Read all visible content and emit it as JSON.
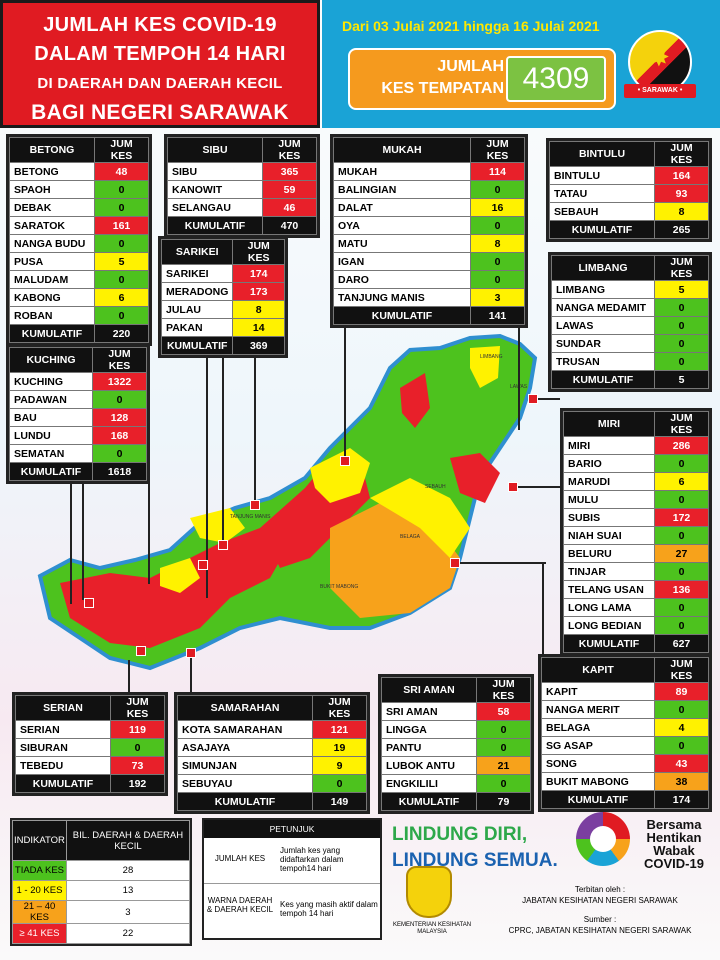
{
  "header": {
    "title_l1": "JUMLAH KES COVID-19",
    "title_l2": "DALAM TEMPOH 14 HARI",
    "title_l3": "DI DAERAH DAN DAERAH KECIL",
    "title_l4": "BAGI NEGERI SARAWAK",
    "period": "Dari 03 Julai 2021 hingga 16 Julai 2021",
    "total_label_1": "JUMLAH",
    "total_label_2": "KES TEMPATAN",
    "total_value": "4309",
    "flag_ribbon": "• SARAWAK •"
  },
  "colors": {
    "red": "#e8202a",
    "yellow": "#fff200",
    "green": "#4dc21e",
    "orange": "#f7a21b"
  },
  "tables": {
    "betong": {
      "name": "BETONG",
      "col": "JUM KES",
      "kum_label": "KUMULATIF",
      "kum": "220",
      "rows": [
        [
          "BETONG",
          "48",
          "red"
        ],
        [
          "SPAOH",
          "0",
          "green"
        ],
        [
          "DEBAK",
          "0",
          "green"
        ],
        [
          "SARATOK",
          "161",
          "red"
        ],
        [
          "NANGA BUDU",
          "0",
          "green"
        ],
        [
          "PUSA",
          "5",
          "yellow"
        ],
        [
          "MALUDAM",
          "0",
          "green"
        ],
        [
          "KABONG",
          "6",
          "yellow"
        ],
        [
          "ROBAN",
          "0",
          "green"
        ]
      ]
    },
    "sibu": {
      "name": "SIBU",
      "col": "JUM KES",
      "kum_label": "KUMULATIF",
      "kum": "470",
      "rows": [
        [
          "SIBU",
          "365",
          "red"
        ],
        [
          "KANOWIT",
          "59",
          "red"
        ],
        [
          "SELANGAU",
          "46",
          "red"
        ]
      ]
    },
    "mukah": {
      "name": "MUKAH",
      "col": "JUM KES",
      "kum_label": "KUMULATIF",
      "kum": "141",
      "rows": [
        [
          "MUKAH",
          "114",
          "red"
        ],
        [
          "BALINGIAN",
          "0",
          "green"
        ],
        [
          "DALAT",
          "16",
          "yellow"
        ],
        [
          "OYA",
          "0",
          "green"
        ],
        [
          "MATU",
          "8",
          "yellow"
        ],
        [
          "IGAN",
          "0",
          "green"
        ],
        [
          "DARO",
          "0",
          "green"
        ],
        [
          "TANJUNG MANIS",
          "3",
          "yellow"
        ]
      ]
    },
    "bintulu": {
      "name": "BINTULU",
      "col": "JUM KES",
      "kum_label": "KUMULATIF",
      "kum": "265",
      "rows": [
        [
          "BINTULU",
          "164",
          "red"
        ],
        [
          "TATAU",
          "93",
          "red"
        ],
        [
          "SEBAUH",
          "8",
          "yellow"
        ]
      ]
    },
    "sarikei": {
      "name": "SARIKEI",
      "col": "JUM KES",
      "kum_label": "KUMULATIF",
      "kum": "369",
      "rows": [
        [
          "SARIKEI",
          "174",
          "red"
        ],
        [
          "MERADONG",
          "173",
          "red"
        ],
        [
          "JULAU",
          "8",
          "yellow"
        ],
        [
          "PAKAN",
          "14",
          "yellow"
        ]
      ]
    },
    "limbang": {
      "name": "LIMBANG",
      "col": "JUM KES",
      "kum_label": "KUMULATIF",
      "kum": "5",
      "rows": [
        [
          "LIMBANG",
          "5",
          "yellow"
        ],
        [
          "NANGA MEDAMIT",
          "0",
          "green"
        ],
        [
          "LAWAS",
          "0",
          "green"
        ],
        [
          "SUNDAR",
          "0",
          "green"
        ],
        [
          "TRUSAN",
          "0",
          "green"
        ]
      ]
    },
    "kuching": {
      "name": "KUCHING",
      "col": "JUM KES",
      "kum_label": "KUMULATIF",
      "kum": "1618",
      "rows": [
        [
          "KUCHING",
          "1322",
          "red"
        ],
        [
          "PADAWAN",
          "0",
          "green"
        ],
        [
          "BAU",
          "128",
          "red"
        ],
        [
          "LUNDU",
          "168",
          "red"
        ],
        [
          "SEMATAN",
          "0",
          "green"
        ]
      ]
    },
    "miri": {
      "name": "MIRI",
      "col": "JUM KES",
      "kum_label": "KUMULATIF",
      "kum": "627",
      "rows": [
        [
          "MIRI",
          "286",
          "red"
        ],
        [
          "BARIO",
          "0",
          "green"
        ],
        [
          "MARUDI",
          "6",
          "yellow"
        ],
        [
          "MULU",
          "0",
          "green"
        ],
        [
          "SUBIS",
          "172",
          "red"
        ],
        [
          "NIAH SUAI",
          "0",
          "green"
        ],
        [
          "BELURU",
          "27",
          "orange"
        ],
        [
          "TINJAR",
          "0",
          "green"
        ],
        [
          "TELANG USAN",
          "136",
          "red"
        ],
        [
          "LONG LAMA",
          "0",
          "green"
        ],
        [
          "LONG BEDIAN",
          "0",
          "green"
        ]
      ]
    },
    "kapit": {
      "name": "KAPIT",
      "col": "JUM KES",
      "kum_label": "KUMULATIF",
      "kum": "174",
      "rows": [
        [
          "KAPIT",
          "89",
          "red"
        ],
        [
          "NANGA MERIT",
          "0",
          "green"
        ],
        [
          "BELAGA",
          "4",
          "yellow"
        ],
        [
          "SG ASAP",
          "0",
          "green"
        ],
        [
          "SONG",
          "43",
          "red"
        ],
        [
          "BUKIT MABONG",
          "38",
          "orange"
        ]
      ]
    },
    "sriaman": {
      "name": "SRI AMAN",
      "col": "JUM KES",
      "kum_label": "KUMULATIF",
      "kum": "79",
      "rows": [
        [
          "SRI AMAN",
          "58",
          "red"
        ],
        [
          "LINGGA",
          "0",
          "green"
        ],
        [
          "PANTU",
          "0",
          "green"
        ],
        [
          "LUBOK ANTU",
          "21",
          "orange"
        ],
        [
          "ENGKILILI",
          "0",
          "green"
        ]
      ]
    },
    "serian": {
      "name": "SERIAN",
      "col": "JUM KES",
      "kum_label": "KUMULATIF",
      "kum": "192",
      "rows": [
        [
          "SERIAN",
          "119",
          "red"
        ],
        [
          "SIBURAN",
          "0",
          "green"
        ],
        [
          "TEBEDU",
          "73",
          "red"
        ]
      ]
    },
    "samarahan": {
      "name": "SAMARAHAN",
      "col": "JUM KES",
      "kum_label": "KUMULATIF",
      "kum": "149",
      "rows": [
        [
          "KOTA SAMARAHAN",
          "121",
          "red"
        ],
        [
          "ASAJAYA",
          "19",
          "yellow"
        ],
        [
          "SIMUNJAN",
          "9",
          "yellow"
        ],
        [
          "SEBUYAU",
          "0",
          "green"
        ]
      ]
    }
  },
  "map_labels": [
    "TANJUNG MANIS",
    "BELAGA",
    "BUKIT MABONG",
    "SEBAUH",
    "LIMBANG",
    "LAWAS"
  ],
  "legend": {
    "h1": "INDIKATOR",
    "h2": "BIL. DAERAH & DAERAH KECIL",
    "rows": [
      [
        "TIADA KES",
        "28",
        "green"
      ],
      [
        "1 - 20 KES",
        "13",
        "yellow"
      ],
      [
        "21 – 40 KES",
        "3",
        "orange"
      ],
      [
        "≥ 41 KES",
        "22",
        "red"
      ]
    ]
  },
  "petunjuk": {
    "title": "PETUNJUK",
    "k1": "JUMLAH KES",
    "d1": "Jumlah kes yang didaftarkan dalam tempoh14 hari",
    "k2": "WARNA DAERAH & DAERAH KECIL",
    "d2": "Kes yang masih aktif dalam tempoh 14 hari"
  },
  "footer": {
    "slogan1": "LINDUNG DIRI,",
    "slogan2": "LINDUNG SEMUA.",
    "hentikan": "Bersama Hentikan Wabak COVID-19",
    "kkm": "KEMENTERIAN KESIHATAN MALAYSIA",
    "terbitan_label": "Terbitan oleh :",
    "terbitan": "JABATAN KESIHATAN NEGERI SARAWAK",
    "sumber_label": "Sumber :",
    "sumber": "CPRC, JABATAN KESIHATAN NEGERI SARAWAK"
  }
}
